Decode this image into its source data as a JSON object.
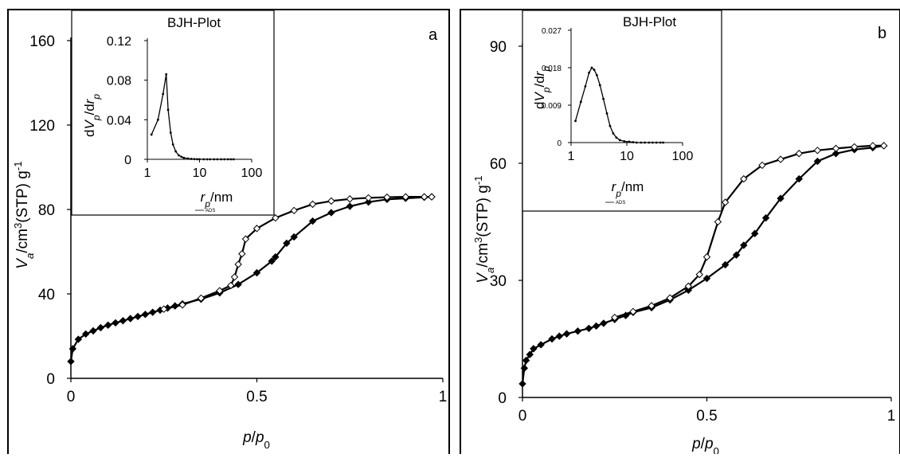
{
  "chart_data": [
    {
      "type": "line",
      "panel_label": "a",
      "xlabel": "p/p0",
      "ylabel": "Va/cm3(STP) g-1",
      "xlim": [
        0,
        1
      ],
      "ylim": [
        0,
        160
      ],
      "x_ticks": [
        "0",
        "0.5",
        "1"
      ],
      "y_ticks": [
        "0",
        "40",
        "80",
        "120",
        "160"
      ],
      "series": [
        {
          "marker": "filled-diamond",
          "x": [
            0.0,
            0.005,
            0.02,
            0.04,
            0.06,
            0.08,
            0.1,
            0.12,
            0.14,
            0.16,
            0.18,
            0.2,
            0.22,
            0.24,
            0.26,
            0.28,
            0.3,
            0.35,
            0.4,
            0.45,
            0.5,
            0.54,
            0.55,
            0.58,
            0.6,
            0.65,
            0.7,
            0.75,
            0.8,
            0.85,
            0.9,
            0.95,
            0.97
          ],
          "y": [
            8,
            14,
            18.5,
            21,
            22.5,
            24,
            25.2,
            26.3,
            27.3,
            28.3,
            29.3,
            30.3,
            31.3,
            32.3,
            33.3,
            34.3,
            35.3,
            37.5,
            40.5,
            44.5,
            50,
            55.5,
            57.5,
            64,
            67,
            74.5,
            78.5,
            81.5,
            83.5,
            84.8,
            85.3,
            85.8,
            86
          ]
        },
        {
          "marker": "open-diamond",
          "x": [
            0.97,
            0.95,
            0.9,
            0.85,
            0.8,
            0.75,
            0.7,
            0.65,
            0.6,
            0.55,
            0.5,
            0.47,
            0.46,
            0.45,
            0.44,
            0.43,
            0.4,
            0.35,
            0.3,
            0.25
          ],
          "y": [
            86,
            86,
            86,
            85.8,
            85.5,
            85,
            84,
            82.5,
            79.5,
            76,
            71,
            66,
            59,
            54,
            48,
            44,
            41.5,
            38,
            34.8,
            32.8
          ]
        }
      ],
      "inset": {
        "title": "BJH-Plot",
        "xlabel": "rp/nm",
        "ylabel": "dVp/drp",
        "x_scale": "log",
        "xlim": [
          1,
          100
        ],
        "ylim": [
          0,
          0.12
        ],
        "x_ticks": [
          "1",
          "10",
          "100"
        ],
        "y_ticks": [
          "0",
          "0.04",
          "0.08",
          "0.12"
        ],
        "legend": "ADS",
        "x": [
          1.2,
          1.6,
          2.0,
          2.3,
          2.5,
          2.8,
          3.1,
          3.5,
          4.0,
          4.5,
          5,
          6,
          7,
          8,
          9,
          10,
          12,
          14,
          16,
          19,
          22,
          26,
          30,
          35,
          40,
          45
        ],
        "y": [
          0.025,
          0.04,
          0.066,
          0.086,
          0.05,
          0.027,
          0.015,
          0.008,
          0.004,
          0.0025,
          0.0015,
          0.0008,
          0.0004,
          0.0002,
          0.0001,
          0.0001,
          0,
          0,
          0,
          0,
          0,
          0,
          0,
          0,
          0,
          0
        ]
      }
    },
    {
      "type": "line",
      "panel_label": "b",
      "xlabel": "p/p0",
      "ylabel": "Va/cm3(STP) g-1",
      "xlim": [
        0,
        1
      ],
      "ylim": [
        0,
        90
      ],
      "x_ticks": [
        "0",
        "0.5",
        "1"
      ],
      "y_ticks": [
        "0",
        "30",
        "60",
        "90"
      ],
      "series": [
        {
          "marker": "filled-diamond",
          "x": [
            0.0,
            0.005,
            0.01,
            0.02,
            0.03,
            0.05,
            0.08,
            0.1,
            0.12,
            0.15,
            0.18,
            0.2,
            0.22,
            0.25,
            0.28,
            0.3,
            0.35,
            0.4,
            0.45,
            0.5,
            0.55,
            0.58,
            0.6,
            0.63,
            0.66,
            0.7,
            0.75,
            0.8,
            0.85,
            0.9,
            0.95,
            0.98
          ],
          "y": [
            3.5,
            7.5,
            9.5,
            11,
            12.5,
            13.5,
            15,
            15.7,
            16.3,
            17,
            17.7,
            18.3,
            19,
            20,
            21,
            21.8,
            23,
            25,
            27.5,
            30.5,
            34,
            36.5,
            39,
            42,
            46,
            51,
            56,
            60.5,
            62.5,
            63.5,
            64,
            64.5
          ]
        },
        {
          "marker": "open-diamond",
          "x": [
            0.98,
            0.95,
            0.9,
            0.85,
            0.8,
            0.75,
            0.7,
            0.65,
            0.6,
            0.55,
            0.53,
            0.5,
            0.48,
            0.45,
            0.4,
            0.35,
            0.3,
            0.25
          ],
          "y": [
            64.5,
            64.5,
            64.2,
            63.8,
            63.3,
            62.5,
            61,
            59.5,
            56,
            50,
            45,
            36,
            31.5,
            28.5,
            25.5,
            23.5,
            22,
            20.5
          ]
        }
      ],
      "inset": {
        "title": "BJH-Plot",
        "xlabel": "rp/nm",
        "ylabel": "dVp/drp",
        "x_scale": "log",
        "xlim": [
          1,
          100
        ],
        "ylim": [
          0,
          0.027
        ],
        "x_ticks": [
          "1",
          "10",
          "100"
        ],
        "y_ticks": [
          "0",
          "0.009",
          "0.018",
          "0.027"
        ],
        "legend": "ADS",
        "x": [
          1.2,
          1.5,
          1.8,
          2.1,
          2.35,
          2.6,
          2.9,
          3.3,
          3.8,
          4.4,
          5,
          5.7,
          6.5,
          7.5,
          9,
          11,
          13,
          15,
          18,
          21,
          25,
          29,
          34,
          40,
          45
        ],
        "y": [
          0.0052,
          0.0098,
          0.0135,
          0.0168,
          0.018,
          0.0175,
          0.0162,
          0.0138,
          0.0105,
          0.007,
          0.004,
          0.0022,
          0.0012,
          0.0006,
          0.0003,
          0.0002,
          0.0001,
          0,
          0,
          0,
          0,
          0,
          0,
          0,
          0
        ]
      }
    }
  ]
}
